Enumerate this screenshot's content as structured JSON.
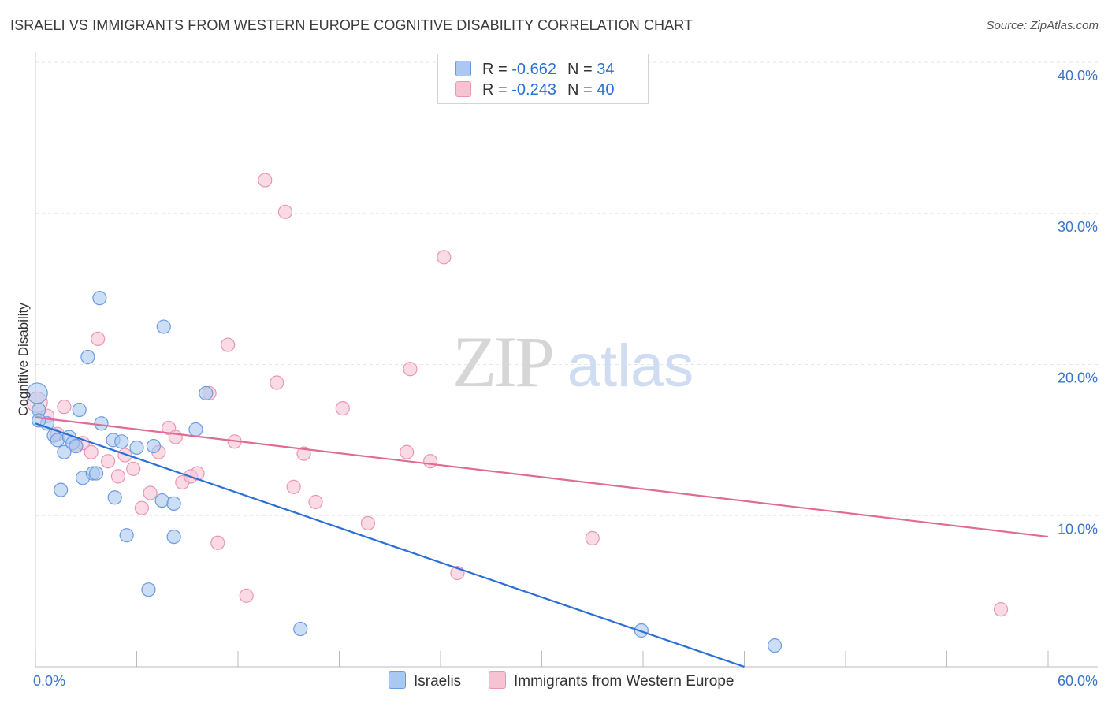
{
  "header": {
    "title": "ISRAELI VS IMMIGRANTS FROM WESTERN EUROPE COGNITIVE DISABILITY CORRELATION CHART",
    "source": "Source: ZipAtlas.com"
  },
  "watermark": {
    "part1": "ZIP",
    "part2": "atlas"
  },
  "stats": [
    {
      "r_label": "R = ",
      "r_value": "-0.662",
      "n_label": "N = ",
      "n_value": "34"
    },
    {
      "r_label": "R = ",
      "r_value": "-0.243",
      "n_label": "N = ",
      "n_value": "40"
    }
  ],
  "colors": {
    "blue_fill": "#aac8f0",
    "blue_stroke": "#6a9be0",
    "blue_line": "#2a6fd6",
    "pink_fill": "#f7c3d3",
    "pink_stroke": "#eb96b1",
    "pink_line": "#e06b95",
    "axis_text": "#3a74c8",
    "grid": "#e6e6e6"
  },
  "chart_data": {
    "type": "scatter",
    "title": "ISRAELI VS IMMIGRANTS FROM WESTERN EUROPE COGNITIVE DISABILITY CORRELATION CHART",
    "xlabel": "",
    "ylabel": "Cognitive Disability",
    "xlim": [
      0,
      60
    ],
    "ylim": [
      0,
      40
    ],
    "x_tick_labels": [
      "0.0%",
      "60.0%"
    ],
    "y_ticks": [
      10,
      20,
      30,
      40
    ],
    "y_tick_labels": [
      "10.0%",
      "20.0%",
      "30.0%",
      "40.0%"
    ],
    "legend_position": "bottom",
    "series": [
      {
        "name": "Israelis",
        "r": -0.662,
        "n": 34,
        "trend": {
          "x": [
            0,
            42
          ],
          "y": [
            16.1,
            0
          ]
        },
        "points": [
          [
            0.1,
            18.1
          ],
          [
            0.2,
            17.0
          ],
          [
            0.7,
            16.1
          ],
          [
            1.1,
            15.3
          ],
          [
            1.3,
            15.0
          ],
          [
            1.5,
            11.7
          ],
          [
            1.7,
            14.2
          ],
          [
            2.0,
            15.2
          ],
          [
            2.2,
            14.8
          ],
          [
            2.4,
            14.6
          ],
          [
            2.6,
            17.0
          ],
          [
            2.8,
            12.5
          ],
          [
            3.1,
            20.5
          ],
          [
            3.4,
            12.8
          ],
          [
            3.6,
            12.8
          ],
          [
            3.8,
            24.4
          ],
          [
            3.9,
            16.1
          ],
          [
            4.6,
            15.0
          ],
          [
            4.7,
            11.2
          ],
          [
            5.1,
            14.9
          ],
          [
            5.4,
            8.7
          ],
          [
            6.0,
            14.5
          ],
          [
            6.7,
            5.1
          ],
          [
            7.0,
            14.6
          ],
          [
            7.5,
            11.0
          ],
          [
            7.6,
            22.5
          ],
          [
            8.2,
            10.8
          ],
          [
            8.2,
            8.6
          ],
          [
            9.5,
            15.7
          ],
          [
            10.1,
            18.1
          ],
          [
            15.7,
            2.5
          ],
          [
            35.9,
            2.4
          ],
          [
            43.8,
            1.4
          ],
          [
            0.2,
            16.3
          ]
        ]
      },
      {
        "name": "Immigrants from Western Europe",
        "r": -0.243,
        "n": 40,
        "trend": {
          "x": [
            0,
            60
          ],
          "y": [
            16.5,
            8.6
          ]
        },
        "points": [
          [
            0.1,
            17.5
          ],
          [
            0.7,
            16.6
          ],
          [
            1.3,
            15.4
          ],
          [
            1.7,
            17.2
          ],
          [
            2.4,
            14.6
          ],
          [
            2.8,
            14.8
          ],
          [
            3.3,
            14.2
          ],
          [
            3.7,
            21.7
          ],
          [
            4.3,
            13.6
          ],
          [
            4.9,
            12.6
          ],
          [
            5.3,
            14.0
          ],
          [
            5.8,
            13.1
          ],
          [
            6.3,
            10.5
          ],
          [
            6.8,
            11.5
          ],
          [
            7.3,
            14.2
          ],
          [
            7.9,
            15.8
          ],
          [
            8.3,
            15.2
          ],
          [
            8.7,
            12.2
          ],
          [
            9.2,
            12.6
          ],
          [
            9.6,
            12.8
          ],
          [
            10.3,
            18.1
          ],
          [
            10.8,
            8.2
          ],
          [
            11.4,
            21.3
          ],
          [
            11.8,
            14.9
          ],
          [
            12.5,
            4.7
          ],
          [
            13.6,
            32.2
          ],
          [
            14.3,
            18.8
          ],
          [
            14.8,
            30.1
          ],
          [
            15.3,
            11.9
          ],
          [
            15.9,
            14.1
          ],
          [
            16.6,
            10.9
          ],
          [
            18.2,
            17.1
          ],
          [
            19.7,
            9.5
          ],
          [
            22.0,
            14.2
          ],
          [
            22.2,
            19.7
          ],
          [
            23.4,
            13.6
          ],
          [
            24.2,
            27.1
          ],
          [
            25.0,
            6.2
          ],
          [
            33.0,
            8.5
          ],
          [
            57.2,
            3.8
          ]
        ]
      }
    ]
  }
}
